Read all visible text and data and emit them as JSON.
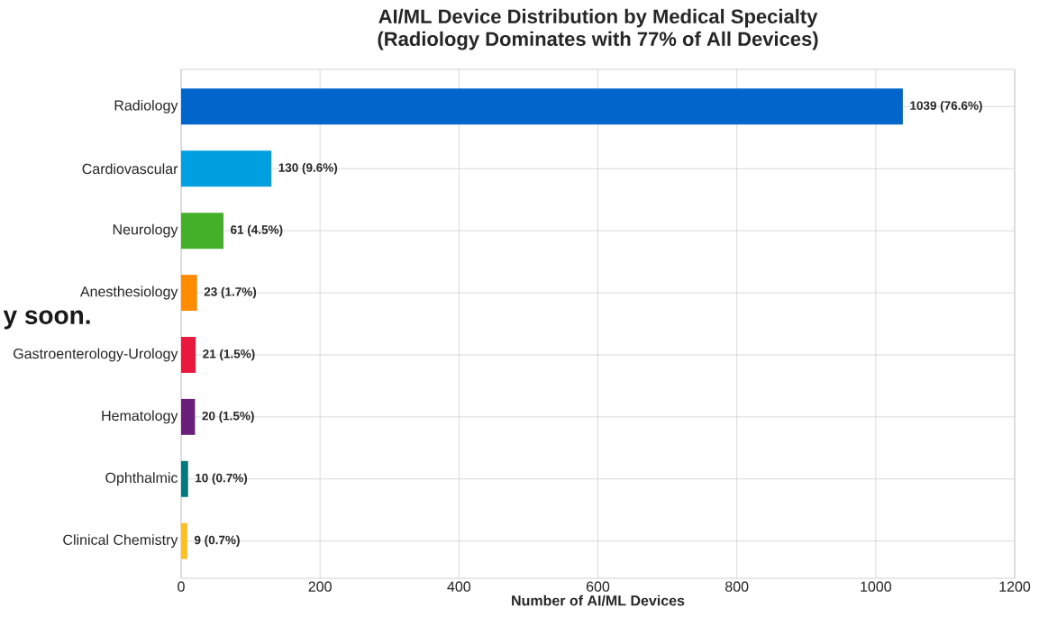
{
  "chart_data": {
    "type": "bar",
    "orientation": "horizontal",
    "title": "AI/ML Device Distribution by Medical Specialty",
    "subtitle": "(Radiology Dominates with 77% of All Devices)",
    "xlabel": "Number of AI/ML Devices",
    "categories": [
      "Radiology",
      "Cardiovascular",
      "Neurology",
      "Anesthesiology",
      "Gastroenterology-Urology",
      "Hematology",
      "Ophthalmic",
      "Clinical Chemistry"
    ],
    "values": [
      1039,
      130,
      61,
      23,
      21,
      20,
      10,
      9
    ],
    "colors": [
      "#0066cc",
      "#00a0e0",
      "#44b02a",
      "#ff8c00",
      "#e8193c",
      "#6a1f7a",
      "#007a80",
      "#ffc020"
    ],
    "value_labels": [
      "1039 (76.6%)",
      "130 (9.6%)",
      "61 (4.5%)",
      "23 (1.7%)",
      "21 (1.5%)",
      "20 (1.5%)",
      "10 (0.7%)",
      "9 (0.7%)"
    ],
    "xlim": [
      0,
      1200
    ],
    "xticks": [
      0,
      200,
      400,
      600,
      800,
      1000,
      1200
    ],
    "grid": true,
    "annotations": [
      "y soon."
    ]
  }
}
